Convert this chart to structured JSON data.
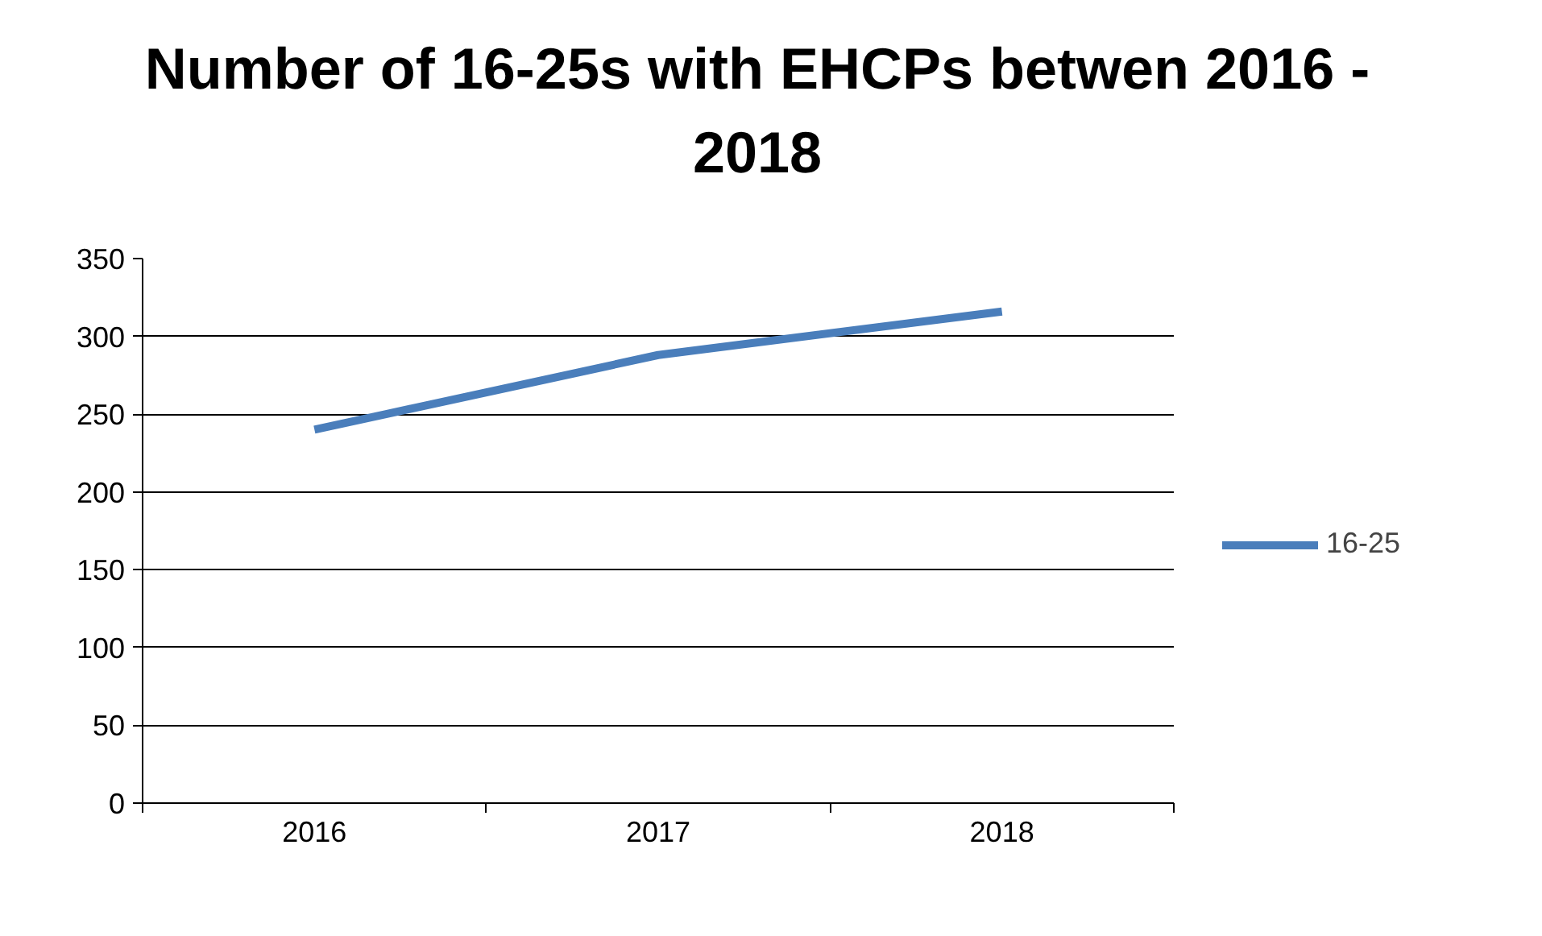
{
  "chart_data": {
    "type": "line",
    "title": "Number of 16-25s with EHCPs betwen 2016 - 2018",
    "categories": [
      "2016",
      "2017",
      "2018"
    ],
    "series": [
      {
        "name": "16-25",
        "color": "#4a7ebb",
        "values": [
          240,
          288,
          316
        ]
      }
    ],
    "ylim": [
      0,
      350
    ],
    "yticks": [
      0,
      50,
      100,
      150,
      200,
      250,
      300,
      350
    ],
    "grid": "y",
    "legend": "right",
    "marker": "none",
    "line_style": "solid"
  }
}
